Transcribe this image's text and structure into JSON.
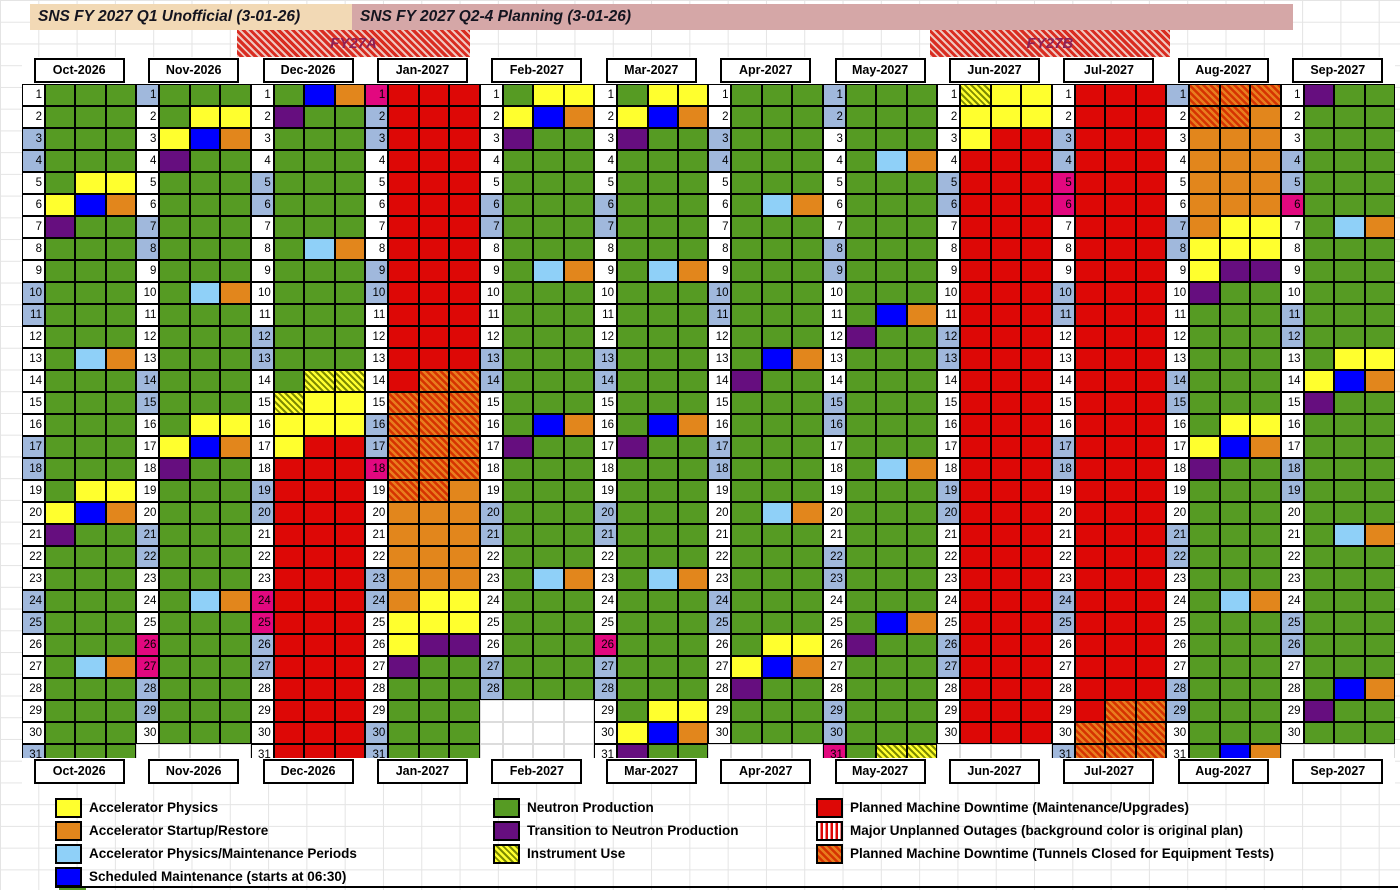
{
  "titles": {
    "q1": "SNS FY 2027 Q1 Unofficial (3-01-26)",
    "q24": "SNS FY 2027 Q2-4 Planning (3-01-26)"
  },
  "fy_bands": [
    {
      "label": "FY27A"
    },
    {
      "label": "FY27B"
    }
  ],
  "palette": {
    "neutron_production": "#569b23",
    "accelerator_physics": "#ffff2e",
    "startup_restore": "#e2861c",
    "physics_maintenance": "#8fd0f8",
    "scheduled_maintenance": "#0000fe",
    "transition": "#660e7f",
    "planned_downtime": "#dd0806",
    "instrument_use_stripe": "#7d8b00",
    "tunnel_bg": "#e87c1e",
    "tunnel_stripe": "#d63301",
    "weekend_bg": "#a0b8dc",
    "holiday_bg": "#e2087f",
    "q1_band_bg": "#f2d9b5",
    "q24_band_bg": "#d5a7a7",
    "fy_label_color": "#8e2157"
  },
  "code_map": {
    "G": "neutron_production",
    "Y": "accelerator_physics",
    "O": "startup_restore",
    "L": "physics_maintenance",
    "B": "scheduled_maintenance",
    "P": "transition",
    "R": "planned_downtime",
    "I": "instrument_use",
    "T": "tunnel_closed"
  },
  "legend": {
    "left": [
      {
        "swatch": "accelerator_physics",
        "label": "Accelerator Physics"
      },
      {
        "swatch": "startup_restore",
        "label": "Accelerator Startup/Restore"
      },
      {
        "swatch": "physics_maintenance",
        "label": "Accelerator Physics/Maintenance Periods"
      },
      {
        "swatch": "scheduled_maintenance",
        "label": "Scheduled Maintenance (starts at 06:30)"
      }
    ],
    "middle": [
      {
        "swatch": "neutron_production",
        "label": "Neutron Production"
      },
      {
        "swatch": "transition",
        "label": "Transition to Neutron Production"
      },
      {
        "swatch": "instrument_use",
        "label": "Instrument Use"
      }
    ],
    "right": [
      {
        "swatch": "planned_downtime",
        "label": "Planned Machine Downtime (Maintenance/Upgrades)"
      },
      {
        "swatch": "major_unplanned",
        "label": "Major Unplanned Outages (background color is original plan)"
      },
      {
        "swatch": "tunnel_closed",
        "label": "Planned Machine Downtime (Tunnels Closed for Equipment Tests)"
      }
    ]
  },
  "months": [
    {
      "name": "Oct-2026",
      "days": 31,
      "weekends": [
        3,
        4,
        10,
        11,
        17,
        18,
        24,
        25,
        31
      ],
      "holidays": [],
      "schedule": {
        "5": "GYY",
        "6": "YBO",
        "7": "PGG",
        "13": "GLO",
        "19": "GYY",
        "20": "YBO",
        "21": "PGG",
        "27": "GLO"
      }
    },
    {
      "name": "Nov-2026",
      "days": 30,
      "weekends": [
        1,
        7,
        8,
        14,
        15,
        21,
        22,
        28,
        29
      ],
      "holidays": [
        26,
        27
      ],
      "schedule": {
        "2": "GYY",
        "3": "YBO",
        "4": "PGG",
        "10": "GLO",
        "16": "GYY",
        "17": "YBO",
        "18": "PGG",
        "24": "GLO"
      }
    },
    {
      "name": "Dec-2026",
      "days": 31,
      "weekends": [
        5,
        6,
        12,
        13,
        19,
        20,
        26,
        27
      ],
      "holidays": [
        24,
        25
      ],
      "fill": {
        "from": 18,
        "to": 31,
        "code": "RRR"
      },
      "schedule": {
        "1": "GBO",
        "2": "PGG",
        "8": "GLO",
        "14": "GII",
        "15": "IYY",
        "16": "YYY",
        "17": "YRR"
      }
    },
    {
      "name": "Jan-2027",
      "days": 31,
      "weekends": [
        2,
        3,
        9,
        10,
        16,
        17,
        23,
        24,
        30,
        31
      ],
      "holidays": [
        1,
        18
      ],
      "fill": {
        "from": 1,
        "to": 13,
        "code": "RRR"
      },
      "schedule": {
        "14": "RTT",
        "15": "TTT",
        "16": "TTT",
        "17": "TTT",
        "18": "TTT",
        "19": "TTO",
        "20": "OOO",
        "21": "OOO",
        "22": "OOO",
        "23": "OOO",
        "24": "OYY",
        "25": "YYY",
        "26": "YPP",
        "27": "PGG"
      }
    },
    {
      "name": "Feb-2027",
      "days": 28,
      "weekends": [
        6,
        7,
        13,
        14,
        20,
        21,
        27,
        28
      ],
      "holidays": [],
      "schedule": {
        "1": "GYY",
        "2": "YBO",
        "3": "PGG",
        "9": "GLO",
        "16": "GBO",
        "17": "PGG",
        "23": "GLO"
      }
    },
    {
      "name": "Mar-2027",
      "days": 31,
      "weekends": [
        6,
        7,
        13,
        14,
        20,
        21,
        27,
        28
      ],
      "holidays": [
        26
      ],
      "schedule": {
        "1": "GYY",
        "2": "YBO",
        "3": "PGG",
        "9": "GLO",
        "16": "GBO",
        "17": "PGG",
        "23": "GLO",
        "29": "GYY",
        "30": "YBO",
        "31": "PGG"
      }
    },
    {
      "name": "Apr-2027",
      "days": 30,
      "weekends": [
        3,
        4,
        10,
        11,
        17,
        18,
        24,
        25
      ],
      "holidays": [],
      "schedule": {
        "6": "GLO",
        "13": "GBO",
        "14": "PGG",
        "20": "GLO",
        "26": "GYY",
        "27": "YBO",
        "28": "PGG"
      }
    },
    {
      "name": "May-2027",
      "days": 31,
      "weekends": [
        1,
        2,
        8,
        9,
        15,
        16,
        22,
        23,
        29,
        30
      ],
      "holidays": [
        31
      ],
      "schedule": {
        "4": "GLO",
        "11": "GBO",
        "12": "PGG",
        "18": "GLO",
        "25": "GBO",
        "26": "PGG",
        "31": "GII"
      }
    },
    {
      "name": "Jun-2027",
      "days": 30,
      "weekends": [
        5,
        6,
        12,
        13,
        19,
        20,
        26,
        27
      ],
      "holidays": [],
      "fill": {
        "from": 4,
        "to": 30,
        "code": "RRR"
      },
      "schedule": {
        "1": "IYY",
        "2": "YYY",
        "3": "YRR"
      }
    },
    {
      "name": "Jul-2027",
      "days": 31,
      "weekends": [
        3,
        4,
        10,
        11,
        17,
        18,
        24,
        25,
        31
      ],
      "holidays": [
        5,
        6
      ],
      "fill": {
        "from": 1,
        "to": 28,
        "code": "RRR"
      },
      "schedule": {
        "29": "RTT",
        "30": "TTT",
        "31": "TTT"
      }
    },
    {
      "name": "Aug-2027",
      "days": 31,
      "weekends": [
        1,
        7,
        8,
        14,
        15,
        21,
        22,
        28,
        29
      ],
      "holidays": [],
      "schedule": {
        "1": "TTT",
        "2": "TTO",
        "3": "OOO",
        "4": "OOO",
        "5": "OOO",
        "6": "OOO",
        "7": "OYY",
        "8": "YYY",
        "9": "YPP",
        "10": "PGG",
        "16": "GYY",
        "17": "YBO",
        "18": "PGG",
        "24": "GLO",
        "31": "GBO"
      }
    },
    {
      "name": "Sep-2027",
      "days": 30,
      "weekends": [
        4,
        5,
        11,
        12,
        18,
        19,
        25,
        26
      ],
      "holidays": [
        6
      ],
      "schedule": {
        "1": "PGG",
        "7": "GLO",
        "13": "GYY",
        "14": "YBO",
        "15": "PGG",
        "21": "GLO",
        "28": "GBO",
        "29": "PGG"
      }
    }
  ]
}
